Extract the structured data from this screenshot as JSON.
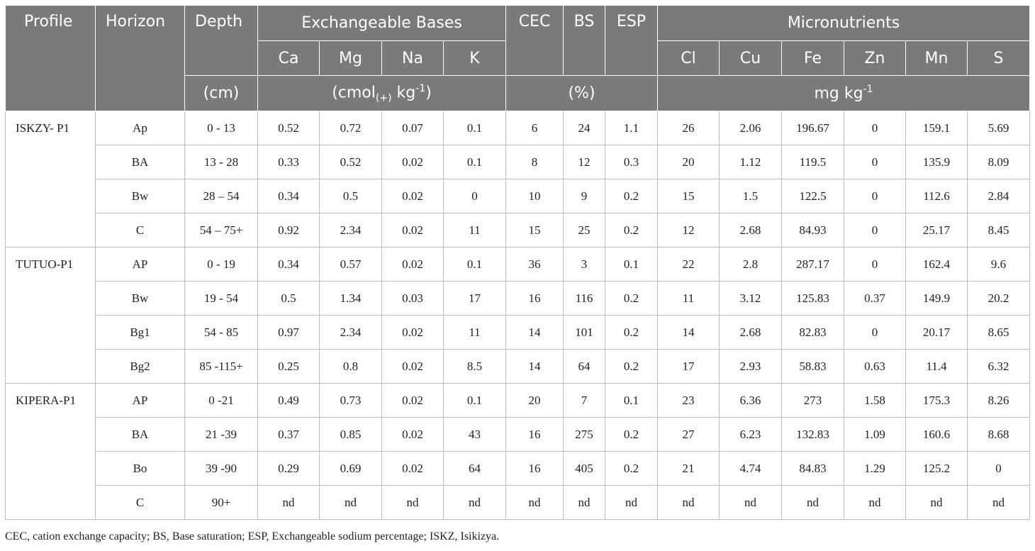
{
  "header": {
    "profile": "Profile",
    "horizon": "Horizon",
    "depth": "Depth",
    "exchangeable_bases": "Exchangeable Bases",
    "cec": "CEC",
    "bs": "BS",
    "esp": "ESP",
    "micronutrients": "Micronutrients",
    "ca": "Ca",
    "mg": "Mg",
    "na": "Na",
    "k": "K",
    "cl": "Cl",
    "cu": "Cu",
    "fe": "Fe",
    "zn": "Zn",
    "mn": "Mn",
    "s": "S",
    "depth_unit": "(cm)",
    "bases_unit_pre": "(cmol",
    "bases_unit_sub": "(+)",
    "bases_unit_mid": " kg",
    "bases_unit_sup": "-1",
    "bases_unit_post": ")",
    "percent_unit": "(%)",
    "micro_unit_main": "mg kg",
    "micro_unit_sup": "-1"
  },
  "profiles": [
    {
      "name": "ISKZY- P1",
      "rows": [
        [
          "Ap",
          "0 - 13",
          "0.52",
          "0.72",
          "0.07",
          "0.1",
          "6",
          "24",
          "1.1",
          "26",
          "2.06",
          "196.67",
          "0",
          "159.1",
          "5.69"
        ],
        [
          "BA",
          "13 - 28",
          "0.33",
          "0.52",
          "0.02",
          "0.1",
          "8",
          "12",
          "0.3",
          "20",
          "1.12",
          "119.5",
          "0",
          "135.9",
          "8.09"
        ],
        [
          "Bw",
          "28 – 54",
          "0.34",
          "0.5",
          "0.02",
          "0",
          "10",
          "9",
          "0.2",
          "15",
          "1.5",
          "122.5",
          "0",
          "112.6",
          "2.84"
        ],
        [
          "C",
          "54 – 75+",
          "0.92",
          "2.34",
          "0.02",
          "11",
          "15",
          "25",
          "0.2",
          "12",
          "2.68",
          "84.93",
          "0",
          "25.17",
          "8.45"
        ]
      ]
    },
    {
      "name": "TUTUO-P1",
      "rows": [
        [
          "AP",
          "0 - 19",
          "0.34",
          "0.57",
          "0.02",
          "0.1",
          "36",
          "3",
          "0.1",
          "22",
          "2.8",
          "287.17",
          "0",
          "162.4",
          "9.6"
        ],
        [
          "Bw",
          "19 - 54",
          "0.5",
          "1.34",
          "0.03",
          "17",
          "16",
          "116",
          "0.2",
          "11",
          "3.12",
          "125.83",
          "0.37",
          "149.9",
          "20.2"
        ],
        [
          "Bg1",
          "54 - 85",
          "0.97",
          "2.34",
          "0.02",
          "11",
          "14",
          "101",
          "0.2",
          "14",
          "2.68",
          "82.83",
          "0",
          "20.17",
          "8.65"
        ],
        [
          "Bg2",
          "85 -115+",
          "0.25",
          "0.8",
          "0.02",
          "8.5",
          "14",
          "64",
          "0.2",
          "17",
          "2.93",
          "58.83",
          "0.63",
          "11.4",
          "6.32"
        ]
      ]
    },
    {
      "name": "KIPERA-P1",
      "rows": [
        [
          "AP",
          "0 -21",
          "0.49",
          "0.73",
          "0.02",
          "0.1",
          "20",
          "7",
          "0.1",
          "23",
          "6.36",
          "273",
          "1.58",
          "175.3",
          "8.26"
        ],
        [
          "BA",
          "21 -39",
          "0.37",
          "0.85",
          "0.02",
          "43",
          "16",
          "275",
          "0.2",
          "27",
          "6.23",
          "132.83",
          "1.09",
          "160.6",
          "8.68"
        ],
        [
          "Bo",
          "39 -90",
          "0.29",
          "0.69",
          "0.02",
          "64",
          "16",
          "405",
          "0.2",
          "21",
          "4.74",
          "84.83",
          "1.29",
          "125.2",
          "0"
        ],
        [
          "C",
          "90+",
          "nd",
          "nd",
          "nd",
          "nd",
          "nd",
          "nd",
          "nd",
          "nd",
          "nd",
          "nd",
          "nd",
          "nd",
          "nd"
        ]
      ]
    }
  ],
  "footnote": "CEC, cation exchange capacity; BS, Base saturation; ESP, Exchangeable sodium percentage; ISKZ, Isikizya."
}
